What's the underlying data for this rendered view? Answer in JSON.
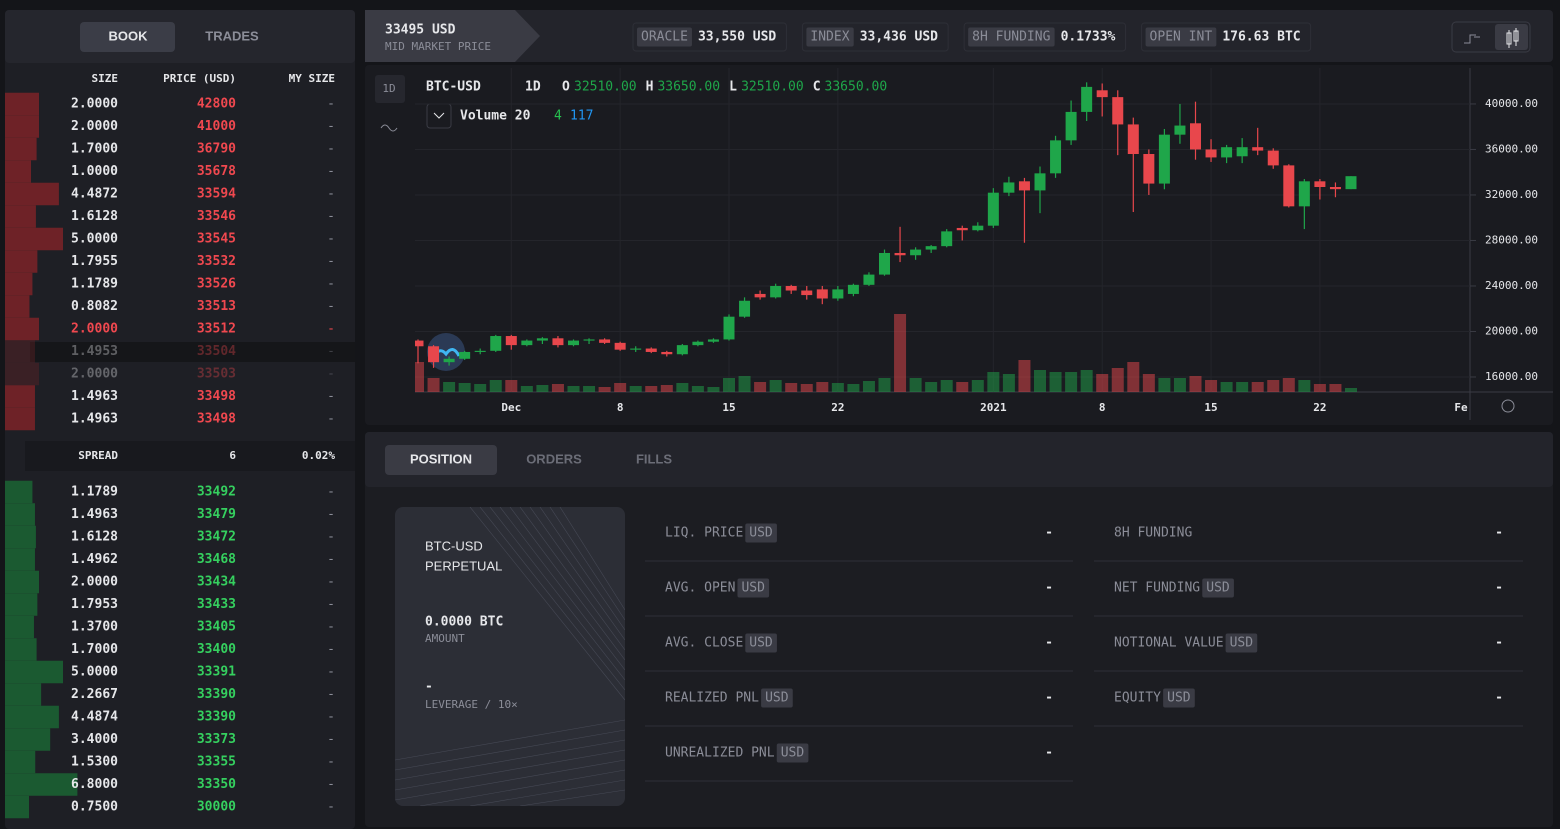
{
  "order_book": {
    "tabs": [
      "BOOK",
      "TRADES"
    ],
    "columns": [
      "SIZE",
      "PRICE (USD)",
      "MY SIZE"
    ],
    "asks": [
      {
        "size": "2.0000",
        "price": "42800",
        "my_size": "-"
      },
      {
        "size": "2.0000",
        "price": "41000",
        "my_size": "-"
      },
      {
        "size": "1.7000",
        "price": "36790",
        "my_size": "-"
      },
      {
        "size": "1.0000",
        "price": "35678",
        "my_size": "-"
      },
      {
        "size": "4.4872",
        "price": "33594",
        "my_size": "-"
      },
      {
        "size": "1.6128",
        "price": "33546",
        "my_size": "-"
      },
      {
        "size": "5.0000",
        "price": "33545",
        "my_size": "-"
      },
      {
        "size": "1.7955",
        "price": "33532",
        "my_size": "-"
      },
      {
        "size": "1.1789",
        "price": "33526",
        "my_size": "-"
      },
      {
        "size": "0.8082",
        "price": "33513",
        "my_size": "-"
      },
      {
        "size": "2.0000",
        "price": "33512",
        "my_size": "-"
      },
      {
        "size": "1.4953",
        "price": "33504",
        "my_size": "-"
      },
      {
        "size": "2.0000",
        "price": "33503",
        "my_size": "-"
      },
      {
        "size": "1.4963",
        "price": "33498",
        "my_size": "-"
      },
      {
        "size": "1.4963",
        "price": "33498",
        "my_size": "-"
      }
    ],
    "spread": {
      "label": "SPREAD",
      "value": "6",
      "percent": "0.02%"
    },
    "bids": [
      {
        "size": "1.1789",
        "price": "33492",
        "my_size": "-"
      },
      {
        "size": "1.4963",
        "price": "33479",
        "my_size": "-"
      },
      {
        "size": "1.6128",
        "price": "33472",
        "my_size": "-"
      },
      {
        "size": "1.4962",
        "price": "33468",
        "my_size": "-"
      },
      {
        "size": "2.0000",
        "price": "33434",
        "my_size": "-"
      },
      {
        "size": "1.7953",
        "price": "33433",
        "my_size": "-"
      },
      {
        "size": "1.3700",
        "price": "33405",
        "my_size": "-"
      },
      {
        "size": "1.7000",
        "price": "33400",
        "my_size": "-"
      },
      {
        "size": "5.0000",
        "price": "33391",
        "my_size": "-"
      },
      {
        "size": "2.2667",
        "price": "33390",
        "my_size": "-"
      },
      {
        "size": "4.4874",
        "price": "33390",
        "my_size": "-"
      },
      {
        "size": "3.4000",
        "price": "33373",
        "my_size": "-"
      },
      {
        "size": "1.5300",
        "price": "33355",
        "my_size": "-"
      },
      {
        "size": "6.8000",
        "price": "33350",
        "my_size": "-"
      },
      {
        "size": "0.7500",
        "price": "30000",
        "my_size": "-"
      }
    ]
  },
  "top_bar": {
    "mid_price": "33495 USD",
    "mid_label": "MID MARKET PRICE",
    "stats": [
      {
        "label": "ORACLE",
        "value": "33,550 USD"
      },
      {
        "label": "INDEX",
        "value": "33,436 USD"
      },
      {
        "label": "8H FUNDING",
        "value": "0.1733%"
      },
      {
        "label": "OPEN INT",
        "value": "176.63 BTC"
      }
    ]
  },
  "chart_data": {
    "type": "candlestick",
    "title": "BTC-USD",
    "interval": "1D",
    "toolbar_interval": "1D",
    "ohlc_legend": [
      {
        "label": "O",
        "value": "32510.00"
      },
      {
        "label": "H",
        "value": "33650.00"
      },
      {
        "label": "L",
        "value": "32510.00"
      },
      {
        "label": "C",
        "value": "33650.00"
      }
    ],
    "volume_legend": {
      "label": "Volume 20",
      "values": [
        "4",
        "117"
      ],
      "colors": [
        "#26c04f",
        "#2196f3"
      ]
    },
    "up_color": "#1fa64a",
    "down_color": "#e8474c",
    "ylim": [
      14680,
      43160
    ],
    "yticks": [
      {
        "value": 16000,
        "label": "16000.00"
      },
      {
        "value": 20000,
        "label": "20000.00"
      },
      {
        "value": 24000,
        "label": "24000.00"
      },
      {
        "value": 28000,
        "label": "28000.00"
      },
      {
        "value": 32000,
        "label": "32000.00"
      },
      {
        "value": 36000,
        "label": "36000.00"
      },
      {
        "value": 40000,
        "label": "40000.00"
      }
    ],
    "xticks": [
      {
        "value": 6,
        "label": "Dec"
      },
      {
        "value": 13,
        "label": "8"
      },
      {
        "value": 20,
        "label": "15"
      },
      {
        "value": 27,
        "label": "22"
      },
      {
        "value": 37,
        "label": "2021"
      },
      {
        "value": 44,
        "label": "8"
      },
      {
        "value": 51,
        "label": "15"
      },
      {
        "value": 58,
        "label": "22"
      },
      {
        "value": 68,
        "label": "Fe"
      }
    ],
    "grid": true,
    "ohlc": [
      [
        19200,
        19300,
        17200,
        18700
      ],
      [
        18700,
        18800,
        16800,
        17300
      ],
      [
        17300,
        17800,
        17000,
        17600
      ],
      [
        17600,
        18300,
        17500,
        18200
      ],
      [
        18200,
        18500,
        18000,
        18300
      ],
      [
        18300,
        19700,
        18200,
        19600
      ],
      [
        19600,
        19700,
        18400,
        18800
      ],
      [
        18800,
        19300,
        18700,
        19200
      ],
      [
        19200,
        19500,
        18900,
        19400
      ],
      [
        19400,
        19600,
        18600,
        18800
      ],
      [
        18800,
        19300,
        18700,
        19200
      ],
      [
        19200,
        19400,
        18900,
        19300
      ],
      [
        19300,
        19400,
        18900,
        19000
      ],
      [
        19000,
        19100,
        18300,
        18400
      ],
      [
        18400,
        18700,
        18200,
        18500
      ],
      [
        18500,
        18600,
        18100,
        18200
      ],
      [
        18200,
        18300,
        17800,
        18000
      ],
      [
        18000,
        18900,
        17900,
        18800
      ],
      [
        18800,
        19200,
        18700,
        19100
      ],
      [
        19100,
        19400,
        19000,
        19300
      ],
      [
        19300,
        21500,
        19200,
        21300
      ],
      [
        21300,
        23000,
        21200,
        22700
      ],
      [
        23300,
        23600,
        22800,
        23000
      ],
      [
        23000,
        24200,
        22900,
        24000
      ],
      [
        24000,
        24100,
        23300,
        23600
      ],
      [
        23600,
        24000,
        22800,
        23200
      ],
      [
        23700,
        24000,
        22400,
        22900
      ],
      [
        22900,
        24000,
        22700,
        23700
      ],
      [
        23300,
        24200,
        23100,
        24100
      ],
      [
        24100,
        25200,
        24000,
        25000
      ],
      [
        25000,
        27200,
        24900,
        26900
      ],
      [
        26900,
        29200,
        26100,
        26700
      ],
      [
        26700,
        27400,
        26300,
        27200
      ],
      [
        27200,
        27600,
        26900,
        27500
      ],
      [
        27500,
        29000,
        27400,
        28800
      ],
      [
        29100,
        29300,
        28000,
        28900
      ],
      [
        28900,
        29600,
        28800,
        29300
      ],
      [
        29300,
        32600,
        29100,
        32200
      ],
      [
        32200,
        33600,
        31900,
        33100
      ],
      [
        33200,
        33500,
        27800,
        32400
      ],
      [
        32400,
        34500,
        30400,
        33900
      ],
      [
        33900,
        37200,
        33500,
        36800
      ],
      [
        36800,
        40300,
        36400,
        39300
      ],
      [
        39300,
        41900,
        38500,
        41500
      ],
      [
        41200,
        41800,
        38900,
        40600
      ],
      [
        40600,
        41200,
        35500,
        38200
      ],
      [
        38200,
        38800,
        30500,
        35600
      ],
      [
        35600,
        36000,
        32000,
        33000
      ],
      [
        33000,
        37800,
        32500,
        37300
      ],
      [
        37300,
        40000,
        36500,
        38100
      ],
      [
        38300,
        40200,
        35100,
        36000
      ],
      [
        36000,
        36900,
        34900,
        35300
      ],
      [
        35300,
        36400,
        34800,
        36200
      ],
      [
        35400,
        37000,
        34800,
        36200
      ],
      [
        36200,
        37900,
        35500,
        35900
      ],
      [
        35900,
        36100,
        34300,
        34600
      ],
      [
        34600,
        34700,
        30900,
        31000
      ],
      [
        31000,
        33400,
        29000,
        33200
      ],
      [
        33200,
        33400,
        31600,
        32700
      ],
      [
        32700,
        33100,
        31800,
        32510
      ],
      [
        32510,
        33650,
        32510,
        33650
      ]
    ],
    "volume_ylim": [
      0,
      100
    ],
    "volumes": [
      30,
      14,
      10,
      9,
      8,
      12,
      12,
      6,
      7,
      8,
      6,
      6,
      5,
      9,
      6,
      6,
      7,
      9,
      6,
      5,
      14,
      16,
      10,
      12,
      9,
      8,
      10,
      9,
      8,
      11,
      14,
      78,
      14,
      10,
      12,
      10,
      12,
      20,
      18,
      32,
      22,
      20,
      20,
      22,
      18,
      24,
      30,
      18,
      14,
      14,
      16,
      12,
      10,
      10,
      10,
      12,
      14,
      12,
      8,
      8,
      4
    ]
  },
  "positions": {
    "tabs": [
      "POSITION",
      "ORDERS",
      "FILLS"
    ],
    "card": {
      "market": "BTC-USD",
      "kind": "PERPETUAL",
      "amount": "0.0000 BTC",
      "amount_label": "AMOUNT",
      "leverage": "-",
      "leverage_label": "LEVERAGE / 10×"
    },
    "left_fields": [
      {
        "label": "LIQ. PRICE",
        "unit": "USD",
        "value": "-"
      },
      {
        "label": "AVG. OPEN",
        "unit": "USD",
        "value": "-"
      },
      {
        "label": "AVG. CLOSE",
        "unit": "USD",
        "value": "-"
      },
      {
        "label": "REALIZED PNL",
        "unit": "USD",
        "value": "-"
      },
      {
        "label": "UNREALIZED PNL",
        "unit": "USD",
        "value": "-"
      }
    ],
    "right_fields": [
      {
        "label": "8H FUNDING",
        "value": "-"
      },
      {
        "label": "NET FUNDING",
        "unit": "USD",
        "value": "-"
      },
      {
        "label": "NOTIONAL VALUE",
        "unit": "USD",
        "value": "-"
      },
      {
        "label": "EQUITY",
        "unit": "USD",
        "value": "-"
      }
    ]
  }
}
